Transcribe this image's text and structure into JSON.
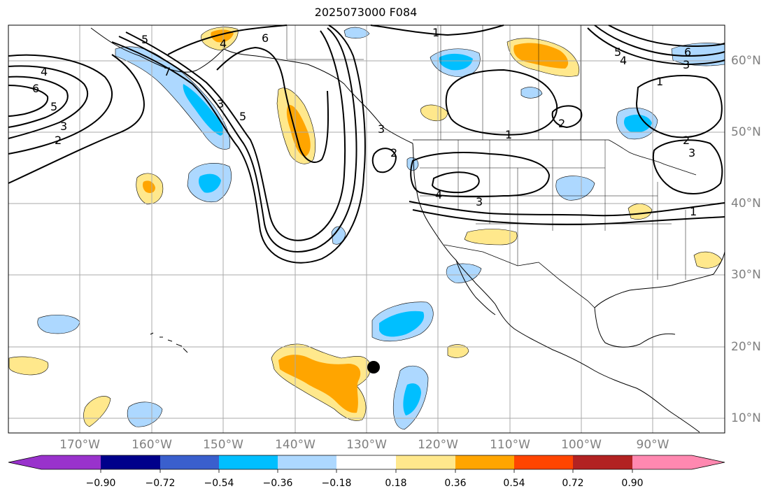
{
  "title": "2025073000 F084",
  "lat_labels": [
    "60°N",
    "50°N",
    "40°N",
    "30°N",
    "20°N",
    "10°N"
  ],
  "lon_labels": [
    "170°W",
    "160°W",
    "150°W",
    "140°W",
    "130°W",
    "120°W",
    "110°W",
    "100°W",
    "90°W"
  ],
  "colorbar": {
    "ticks": [
      "−0.90",
      "−0.72",
      "−0.54",
      "−0.36",
      "−0.18",
      "0.18",
      "0.36",
      "0.54",
      "0.72",
      "0.90"
    ],
    "colors": [
      "#9932cc",
      "#00008b",
      "#3a5fcd",
      "#00bfff",
      "#add8ff",
      "#ffffff",
      "#ffe88c",
      "#ffa500",
      "#ff4500",
      "#b22222",
      "#ff88b0"
    ]
  },
  "contour_labels": [
    "1",
    "1",
    "1",
    "1",
    "2",
    "2",
    "2",
    "2",
    "3",
    "3",
    "3",
    "3",
    "3",
    "3",
    "4",
    "4",
    "4",
    "4",
    "5",
    "5",
    "5",
    "5",
    "6",
    "6",
    "6",
    "7"
  ],
  "colors": {
    "fill_pos_weak": "#ffe88c",
    "fill_pos_mid": "#ffa500",
    "fill_neg_weak": "#add8ff",
    "fill_neg_mid": "#00bfff",
    "grid": "#aaaaaa",
    "axis_label": "#808080"
  },
  "marker": "black-dot"
}
